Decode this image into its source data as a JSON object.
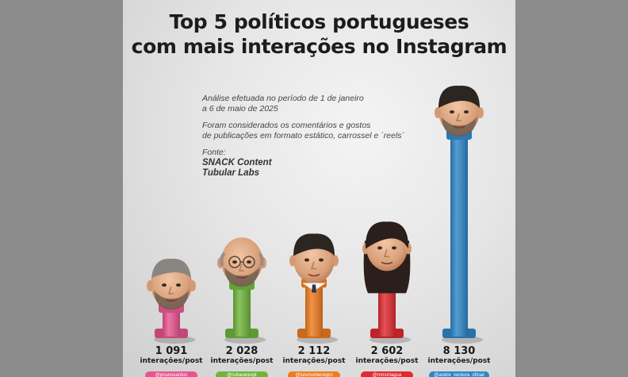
{
  "title_line1": "Top 5 políticos portugueses",
  "title_line2": "com mais interações no Instagram",
  "notes": {
    "period_line1": "Análise efetuada no período de 1 de janeiro",
    "period_line2": "a 6 de maio de 2025",
    "scope_line1": "Foram considerados os comentários e gostos",
    "scope_line2": "de publicações em formato estático, carrossel e ´reels´",
    "source_label": "Fonte:",
    "source1": "SNACK Content",
    "source2": "Tubular Labs"
  },
  "chart_data": {
    "type": "bar",
    "categories": [
      "@pnunosantos",
      "@ruitavarespt",
      "@luismontenegro",
      "@mmortagua",
      "@andre_ventura_oficial"
    ],
    "values": [
      1091,
      2028,
      2112,
      2602,
      8130
    ],
    "value_labels": [
      "1 091",
      "2 028",
      "2 112",
      "2 602",
      "8 130"
    ],
    "value_unit": "interações/post",
    "colors": [
      "#e8548f",
      "#6fb53c",
      "#ee7c1f",
      "#e02a2f",
      "#2d86c8"
    ],
    "icons": [
      "pez-dispenser-head-1",
      "pez-dispenser-head-2",
      "pez-dispenser-head-3",
      "pez-dispenser-head-4",
      "pez-dispenser-head-5"
    ]
  }
}
